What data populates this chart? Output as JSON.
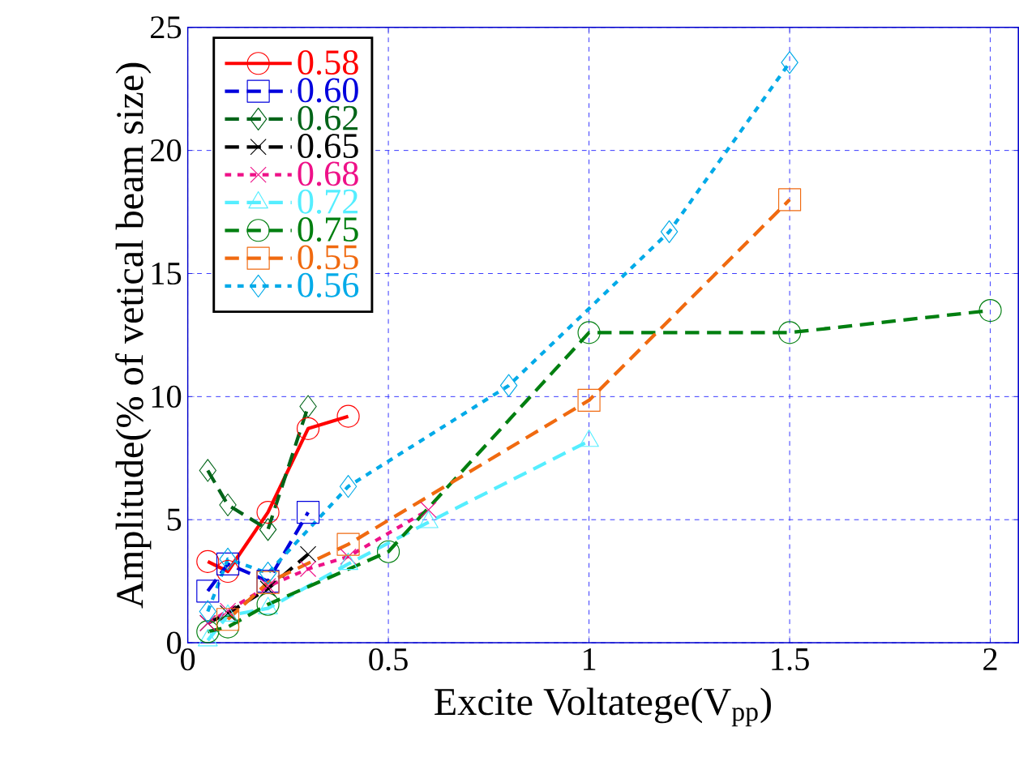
{
  "chart_data": {
    "type": "line",
    "xlabel": "Excite Voltatege(V$_{pp}$)",
    "ylabel": "Amplitude(% of vetical beam size)",
    "xlim": [
      0,
      2.07
    ],
    "ylim": [
      0,
      25
    ],
    "xticks": [
      0,
      0.5,
      1,
      1.5,
      2
    ],
    "yticks": [
      0,
      5,
      10,
      15,
      20,
      25
    ],
    "grid": true,
    "legend": "top left",
    "series": [
      {
        "name": "0.58",
        "color": "#ff0000",
        "marker": "circle",
        "line_style": "solid",
        "x": [
          0.05,
          0.1,
          0.2,
          0.3,
          0.4
        ],
        "values": [
          3.3,
          2.9,
          5.3,
          8.7,
          9.2
        ]
      },
      {
        "name": "0.60",
        "color": "#0000dd",
        "marker": "square",
        "line_style": "dashed",
        "x": [
          0.05,
          0.1,
          0.2,
          0.3
        ],
        "values": [
          2.1,
          3.2,
          2.5,
          5.3
        ]
      },
      {
        "name": "0.62",
        "color": "#006418",
        "marker": "diamond",
        "line_style": "dashed",
        "x": [
          0.05,
          0.1,
          0.2,
          0.3
        ],
        "values": [
          7.0,
          5.6,
          4.6,
          9.6
        ]
      },
      {
        "name": "0.65",
        "color": "#000000",
        "marker": "cross",
        "line_style": "dashed",
        "x": [
          0.05,
          0.1,
          0.2,
          0.3
        ],
        "values": [
          0.8,
          1.2,
          2.2,
          3.6
        ]
      },
      {
        "name": "0.68",
        "color": "#ee1188",
        "marker": "cross",
        "line_style": "dotted",
        "x": [
          0.05,
          0.1,
          0.2,
          0.3,
          0.4,
          0.6
        ],
        "values": [
          0.8,
          1.3,
          2.3,
          3.0,
          3.5,
          5.4
        ]
      },
      {
        "name": "0.72",
        "color": "#55eeff",
        "marker": "triangle",
        "line_style": "dashed",
        "x": [
          0.05,
          0.1,
          0.2,
          0.4,
          0.6,
          1.0
        ],
        "values": [
          0.1,
          1.1,
          1.4,
          3.2,
          4.9,
          8.2
        ]
      },
      {
        "name": "0.75",
        "color": "#007f10",
        "marker": "circle",
        "line_style": "dashed",
        "x": [
          0.05,
          0.1,
          0.2,
          0.5,
          1.0,
          1.5,
          2.0
        ],
        "values": [
          0.45,
          0.64,
          1.56,
          3.7,
          12.6,
          12.6,
          13.5
        ]
      },
      {
        "name": "0.55",
        "color": "#f06a10",
        "marker": "square",
        "line_style": "dashed",
        "x": [
          0.1,
          0.2,
          0.4,
          1.0,
          1.5
        ],
        "values": [
          0.95,
          2.45,
          4.0,
          9.85,
          18.0
        ]
      },
      {
        "name": "0.56",
        "color": "#00aae8",
        "marker": "diamond",
        "line_style": "dotted",
        "x": [
          0.05,
          0.1,
          0.2,
          0.4,
          0.8,
          1.2,
          1.5
        ],
        "values": [
          1.27,
          3.4,
          2.83,
          6.35,
          10.45,
          16.7,
          23.57
        ]
      }
    ]
  }
}
